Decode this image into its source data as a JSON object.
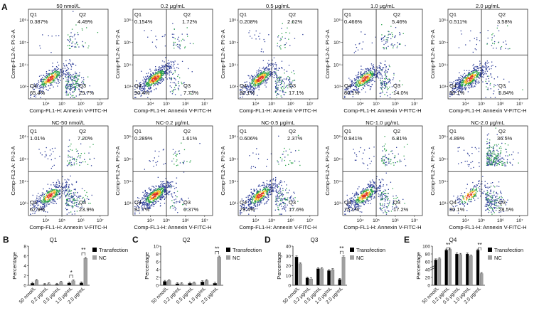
{
  "figure": {
    "panel_labels": [
      "A",
      "B",
      "C",
      "D",
      "E"
    ],
    "flow_x_label": "Comp-FL1-H: Annexin V-FITC-H",
    "flow_y_label": "Comp-FL2-A: PI-2-A",
    "flow_x_ticks": [
      "10⁴",
      "10⁵",
      "10⁶",
      "10⁷"
    ],
    "flow_y_ticks": [
      "10³",
      "10⁴",
      "10⁵",
      "10⁶"
    ],
    "colors": {
      "density_low": "#2f3f9a",
      "density_mid": "#2aa24a",
      "density_high": "#f0c020",
      "density_peak": "#e03020",
      "bar_transfection": "#000000",
      "bar_nc": "#a0a0a0"
    }
  },
  "flow_panels": [
    {
      "title": "50 nmol/L",
      "q1": "0.387%",
      "q2": "4.49%",
      "q3": "29.7%",
      "q4": "65.4%"
    },
    {
      "title": "0.2 μg/mL",
      "q1": "0.154%",
      "q2": "1.72%",
      "q3": "7.73%",
      "q4": "90.4%"
    },
    {
      "title": "0.5 μg/mL",
      "q1": "0.208%",
      "q2": "2.62%",
      "q3": "17.1%",
      "q4": "80.1%"
    },
    {
      "title": "1.0 μg/mL",
      "q1": "0.466%",
      "q2": "5.46%",
      "q3": "14.0%",
      "q4": "80.1%"
    },
    {
      "title": "2.0 μg/mL",
      "q1": "0.511%",
      "q2": "3.58%",
      "q3": "5.84%",
      "q4": "90.1%"
    },
    {
      "title": "NC-50 nmol/L",
      "q1": "1.01%",
      "q2": "7.20%",
      "q3": "23.9%",
      "q4": "67.9%"
    },
    {
      "title": "NC-0.2 μg/mL",
      "q1": "0.289%",
      "q2": "1.61%",
      "q3": "6.37%",
      "q4": "91.7%"
    },
    {
      "title": "NC-0.5 μg/mL",
      "q1": "0.606%",
      "q2": "2.37%",
      "q3": "17.6%",
      "q4": "79.4%"
    },
    {
      "title": "NC-1.0 μg/mL",
      "q1": "0.941%",
      "q2": "6.81%",
      "q3": "17.2%",
      "q4": "75.1%"
    },
    {
      "title": "NC-2.0 μg/mL",
      "q1": "4.89%",
      "q2": "36.5%",
      "q3": "28.5%",
      "q4": "30.1%"
    }
  ],
  "chart_data": [
    {
      "type": "bar",
      "panel": "B",
      "title": "Q1",
      "ylabel": "Percentage",
      "categories": [
        "50 nmol/L",
        "0.2 μg/mL",
        "0.5 μg/mL",
        "1.0 μg/mL",
        "2.0 μg/mL"
      ],
      "yticks": [
        0,
        2,
        4,
        6,
        8
      ],
      "ylim": [
        0,
        8
      ],
      "series": [
        {
          "name": "Transfection",
          "values": [
            0.4,
            0.15,
            0.2,
            0.45,
            0.5
          ]
        },
        {
          "name": "NC",
          "values": [
            1.0,
            0.3,
            0.6,
            0.9,
            5.5
          ]
        }
      ],
      "significance": [
        {
          "category": 3,
          "label": "*"
        },
        {
          "category": 4,
          "label": "**"
        }
      ],
      "legend": "top-right"
    },
    {
      "type": "bar",
      "panel": "C",
      "title": "Q2",
      "ylabel": "Percentage",
      "categories": [
        "50 nmol/L",
        "0.2 μg/mL",
        "0.5 μg/mL",
        "1.0 μg/mL",
        "2.0 μg/mL"
      ],
      "yticks": [
        0,
        2,
        4,
        6,
        8,
        10
      ],
      "ylim": [
        0,
        10
      ],
      "series": [
        {
          "name": "Transfection",
          "values": [
            1.0,
            0.4,
            0.5,
            0.9,
            0.5
          ]
        },
        {
          "name": "NC",
          "values": [
            1.2,
            0.4,
            0.6,
            1.2,
            7.2
          ]
        }
      ],
      "significance": [
        {
          "category": 4,
          "label": "**"
        }
      ],
      "legend": "top-right"
    },
    {
      "type": "bar",
      "panel": "D",
      "title": "Q3",
      "ylabel": "Percentage",
      "categories": [
        "50 nmol/L",
        "0.2 μg/mL",
        "0.5 μg/mL",
        "1.0 μg/mL",
        "2.0 μg/mL"
      ],
      "yticks": [
        0,
        10,
        20,
        30,
        40
      ],
      "ylim": [
        0,
        40
      ],
      "series": [
        {
          "name": "Transfection",
          "values": [
            29,
            7.5,
            17,
            15,
            6
          ]
        },
        {
          "name": "NC",
          "values": [
            22,
            6.5,
            17,
            16,
            29
          ]
        }
      ],
      "significance": [
        {
          "category": 4,
          "label": "**"
        }
      ],
      "legend": "top-right"
    },
    {
      "type": "bar",
      "panel": "E",
      "title": "Q4",
      "ylabel": "Percentage",
      "categories": [
        "50 nmol/L",
        "0.2 μg/mL",
        "0.5 μg/mL",
        "1.0 μg/mL",
        "2.0 μg/mL"
      ],
      "yticks": [
        0,
        20,
        40,
        60,
        80,
        100
      ],
      "ylim": [
        0,
        100
      ],
      "y_axis_break": true,
      "series": [
        {
          "name": "Transfection",
          "values": [
            65,
            90,
            80,
            80,
            90
          ]
        },
        {
          "name": "NC",
          "values": [
            68,
            92,
            79,
            75,
            30
          ]
        }
      ],
      "significance": [
        {
          "category": 1,
          "label": "**"
        },
        {
          "category": 4,
          "label": "**"
        }
      ],
      "legend": "top-right"
    }
  ]
}
